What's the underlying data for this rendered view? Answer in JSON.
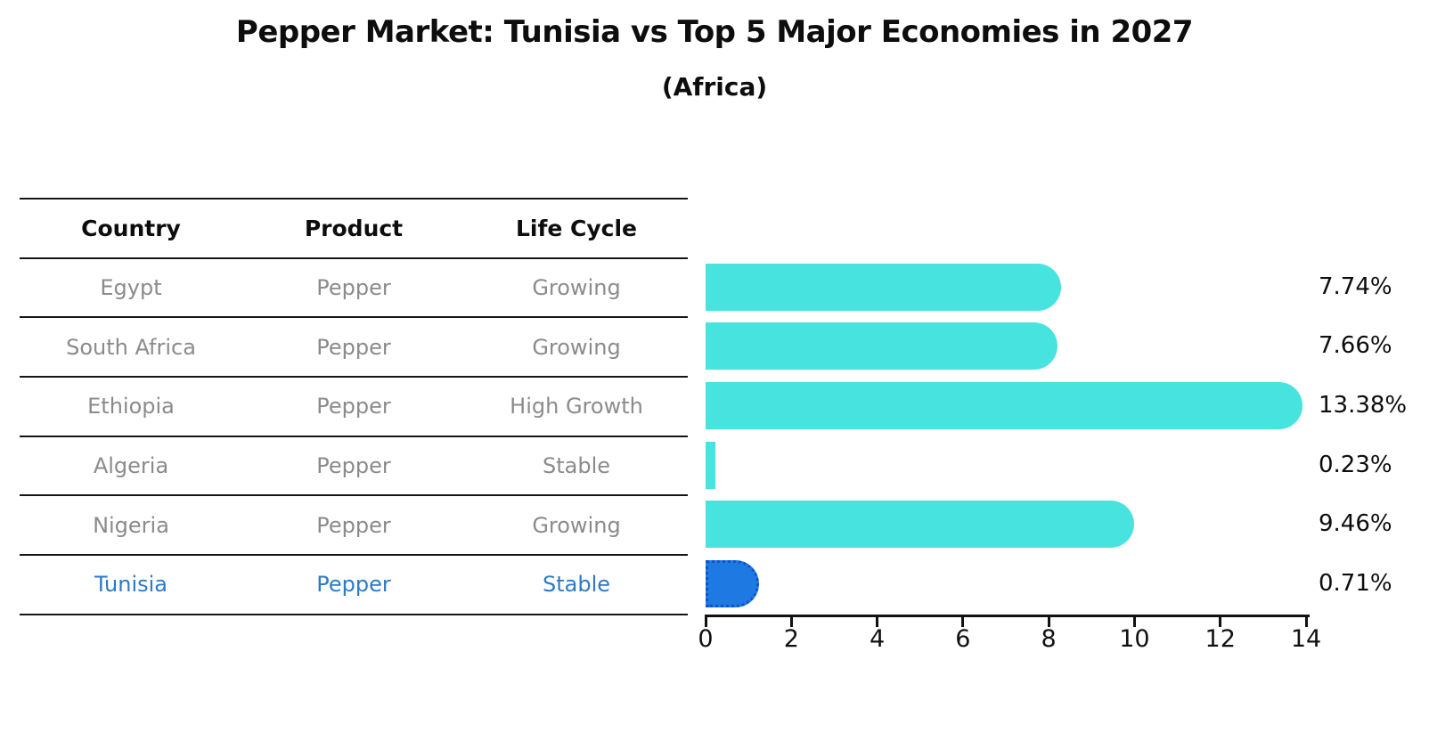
{
  "title": "Pepper Market: Tunisia vs Top 5 Major Economies in 2027",
  "subtitle": "(Africa)",
  "table": {
    "headers": [
      "Country",
      "Product",
      "Life Cycle"
    ]
  },
  "chart_data": {
    "type": "bar",
    "orientation": "horizontal",
    "title": "Pepper Market: Tunisia vs Top 5 Major Economies in 2027",
    "subtitle": "(Africa)",
    "unit": "percent",
    "xlim": [
      0,
      14
    ],
    "xticks": [
      "0",
      "2",
      "4",
      "6",
      "8",
      "10",
      "12",
      "14"
    ],
    "grid": false,
    "legend": "none",
    "bar_color": "#47e4df",
    "highlight_bar_color": "#1e79e3",
    "highlight_bar_border_color": "#0b55cc",
    "highlight_text_color": "#2b7bc6",
    "rows": [
      {
        "country": "Egypt",
        "product": "Pepper",
        "life_cycle": "Growing",
        "value": 7.74,
        "label": "7.74%",
        "highlight": false
      },
      {
        "country": "South Africa",
        "product": "Pepper",
        "life_cycle": "Growing",
        "value": 7.66,
        "label": "7.66%",
        "highlight": false
      },
      {
        "country": "Ethiopia",
        "product": "Pepper",
        "life_cycle": "High Growth",
        "value": 13.38,
        "label": "13.38%",
        "highlight": false
      },
      {
        "country": "Algeria",
        "product": "Pepper",
        "life_cycle": "Stable",
        "value": 0.23,
        "label": "0.23%",
        "highlight": false
      },
      {
        "country": "Nigeria",
        "product": "Pepper",
        "life_cycle": "Growing",
        "value": 9.46,
        "label": "9.46%",
        "highlight": false
      },
      {
        "country": "Tunisia",
        "product": "Pepper",
        "life_cycle": "Stable",
        "value": 0.71,
        "label": "0.71%",
        "highlight": true
      }
    ]
  }
}
